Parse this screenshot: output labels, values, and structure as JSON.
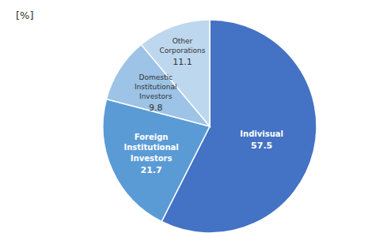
{
  "chart_data": {
    "type": "pie",
    "title": "[%]",
    "categories": [
      "Indivisual",
      "Foreign\nInstitutional\nInvestors",
      "Domestic\nInstitutional\nInvestors",
      "Other\nCorporations"
    ],
    "values": [
      57.5,
      21.7,
      9.8,
      11.1
    ],
    "colors": [
      "#4472C4",
      "#5B9BD5",
      "#9DC3E6",
      "#BDD7EE"
    ],
    "data_labels": true
  }
}
